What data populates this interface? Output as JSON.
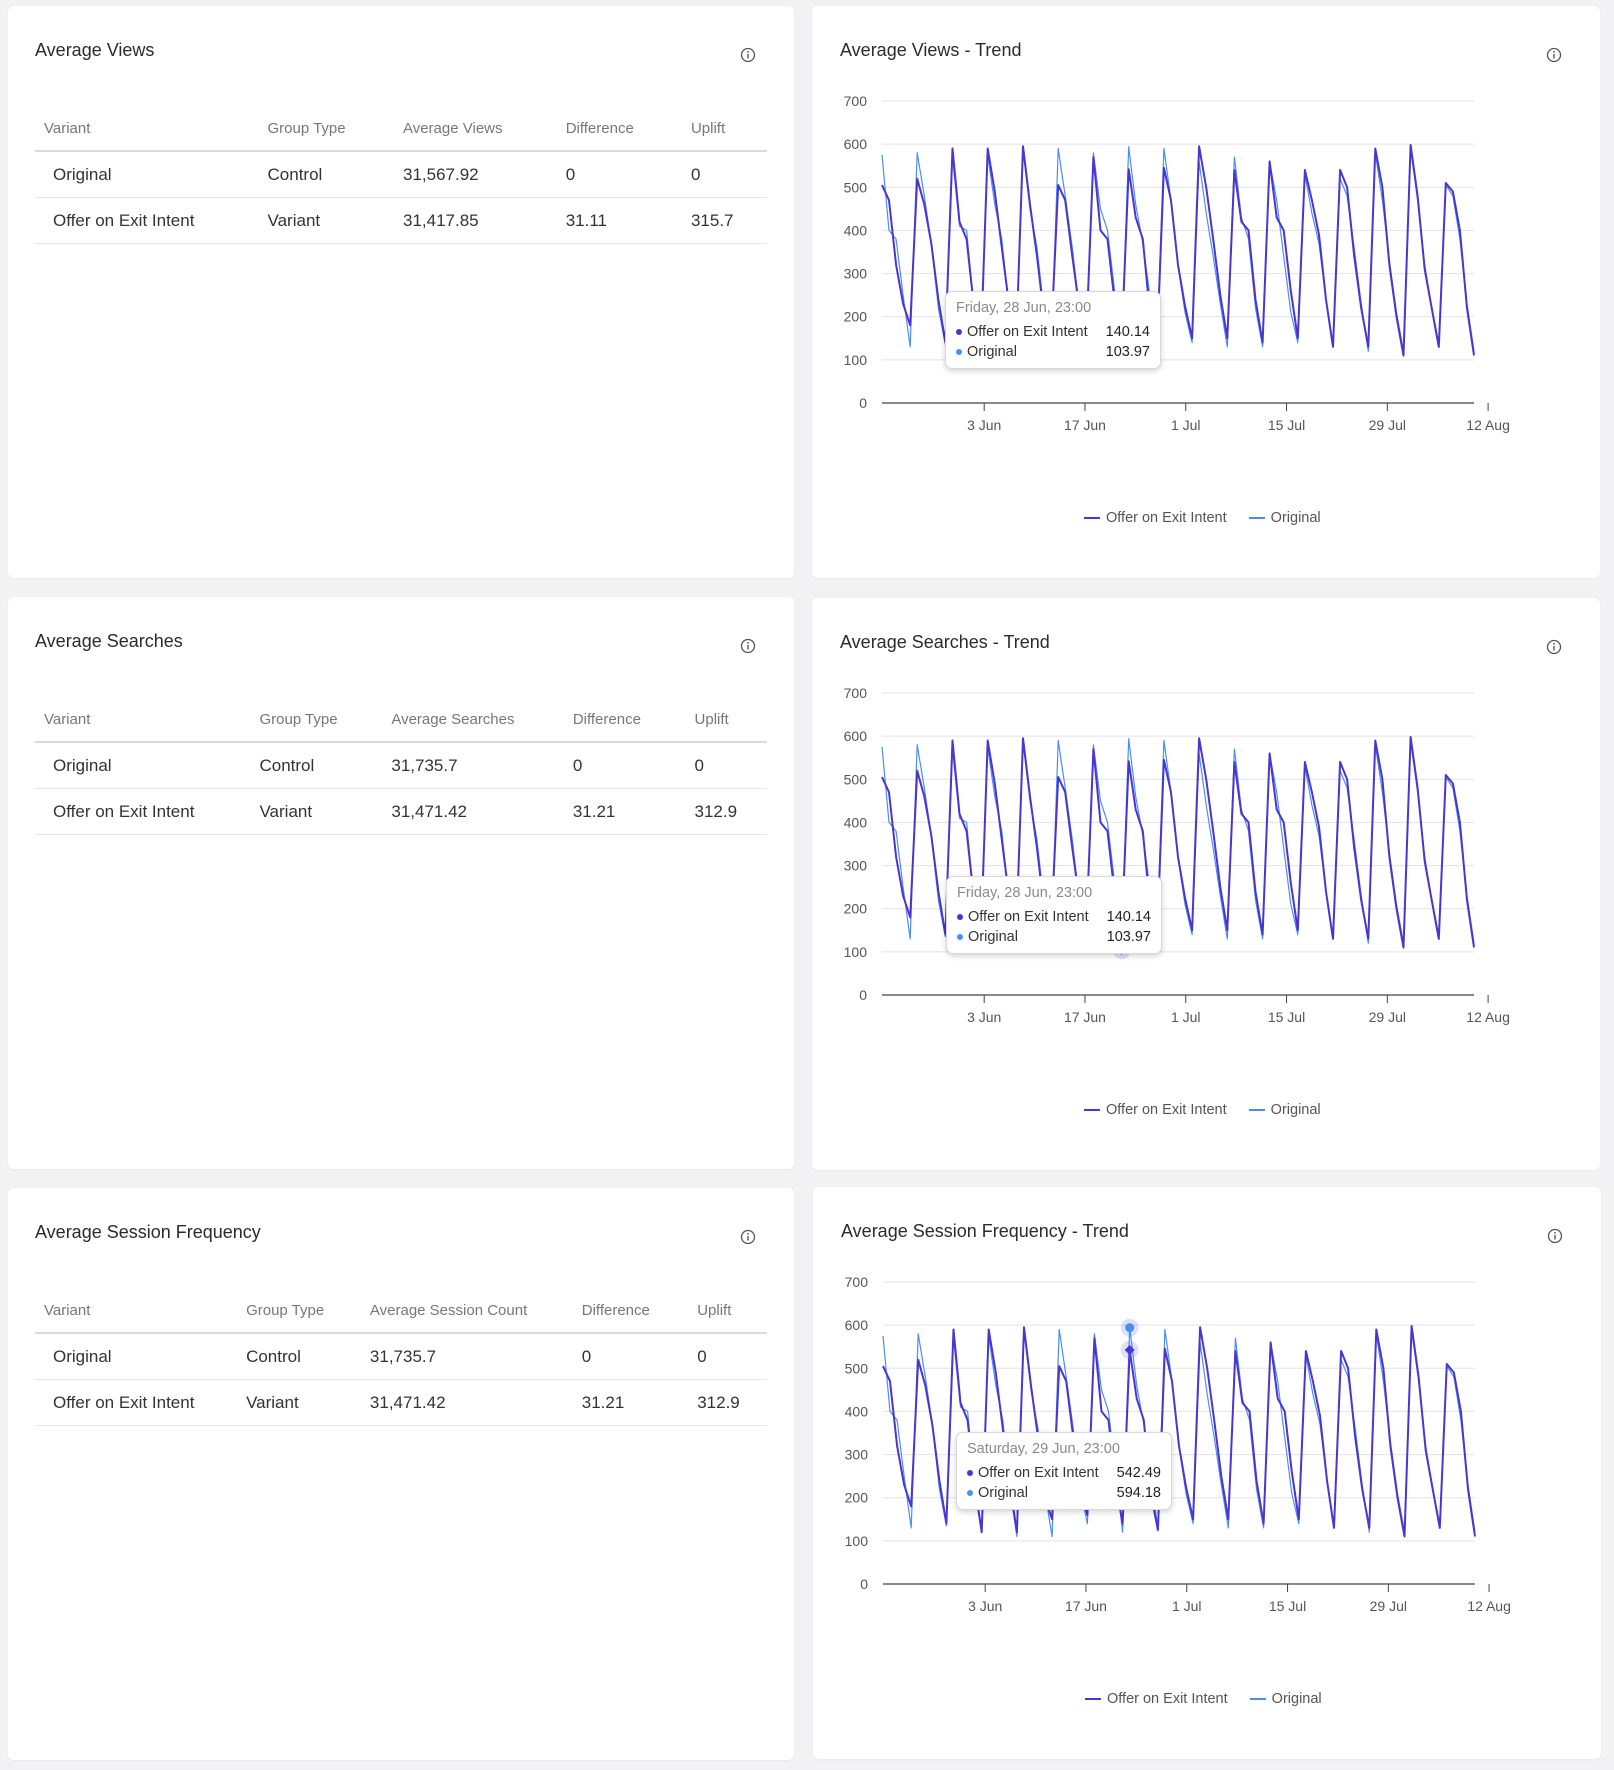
{
  "colors": {
    "variant": "#4b35d1",
    "original": "#4a8ff0"
  },
  "panels": [
    {
      "title": "Average Views",
      "columns": [
        "Variant",
        "Group Type",
        "Average Views",
        "Difference",
        "Uplift"
      ],
      "rows": [
        [
          "Original",
          "Control",
          "31,567.92",
          "0",
          "0"
        ],
        [
          "Offer on Exit Intent",
          "Variant",
          "31,417.85",
          "31.11",
          "315.7"
        ]
      ],
      "trend_title": "Average Views",
      "trend_suffix": "- Trend",
      "tooltip": {
        "title": "Friday, 28 Jun, 23:00",
        "rows": [
          {
            "name": "Offer on Exit Intent",
            "value": "140.14"
          },
          {
            "name": "Original",
            "value": "103.97"
          }
        ]
      }
    },
    {
      "title": "Average Searches",
      "columns": [
        "Variant",
        "Group Type",
        "Average Searches",
        "Difference",
        "Uplift"
      ],
      "rows": [
        [
          "Original",
          "Control",
          "31,735.7",
          "0",
          "0"
        ],
        [
          "Offer on Exit Intent",
          "Variant",
          "31,471.42",
          "31.21",
          "312.9"
        ]
      ],
      "trend_title": "Average Searches",
      "trend_suffix": "- Trend",
      "tooltip": {
        "title": "Friday, 28 Jun, 23:00",
        "rows": [
          {
            "name": "Offer on Exit Intent",
            "value": "140.14"
          },
          {
            "name": "Original",
            "value": "103.97"
          }
        ]
      }
    },
    {
      "title": "Average Session Frequency",
      "columns": [
        "Variant",
        "Group Type",
        "Average Session Count",
        "Difference",
        "Uplift"
      ],
      "rows": [
        [
          "Original",
          "Control",
          "31,735.7",
          "0",
          "0"
        ],
        [
          "Offer on Exit Intent",
          "Variant",
          "31,471.42",
          "31.21",
          "312.9"
        ]
      ],
      "trend_title": "Average Session Frequency",
      "trend_suffix": "- Trend",
      "tooltip": {
        "title": "Saturday, 29 Jun, 23:00",
        "rows": [
          {
            "name": "Offer on Exit Intent",
            "value": "542.49"
          },
          {
            "name": "Original",
            "value": "594.18"
          }
        ]
      }
    }
  ],
  "chart_data": [
    {
      "type": "line",
      "title": "Average Views - Trend",
      "x_ticks": [
        "3 Jun",
        "17 Jun",
        "1 Jul",
        "15 Jul",
        "29 Jul",
        "12 Aug"
      ],
      "y_ticks": [
        "0",
        "100",
        "200",
        "300",
        "400",
        "500",
        "600",
        "700"
      ],
      "ylim": [
        0,
        700
      ],
      "legend": "bottom-center",
      "grid": true,
      "series": [
        {
          "name": "Offer on Exit Intent",
          "values": [
            505,
            470,
            320,
            230,
            180,
            520,
            460,
            370,
            240,
            140,
            590,
            420,
            380,
            230,
            120,
            590,
            490,
            360,
            230,
            120,
            595,
            460,
            340,
            200,
            150,
            505,
            470,
            340,
            220,
            160,
            570,
            400,
            380,
            235,
            140,
            542,
            430,
            380,
            210,
            125,
            545,
            470,
            320,
            225,
            150,
            595,
            500,
            380,
            250,
            150,
            540,
            420,
            400,
            240,
            140,
            560,
            430,
            400,
            260,
            150,
            540,
            470,
            390,
            240,
            130,
            540,
            500,
            340,
            220,
            130,
            590,
            500,
            320,
            200,
            110,
            598,
            480,
            310,
            220,
            130,
            510,
            490,
            400,
            220,
            110
          ]
        },
        {
          "name": "Original",
          "values": [
            575,
            400,
            380,
            250,
            130,
            580,
            480,
            370,
            220,
            135,
            570,
            410,
            400,
            230,
            130,
            575,
            460,
            380,
            220,
            110,
            588,
            450,
            360,
            210,
            110,
            590,
            480,
            360,
            220,
            140,
            580,
            450,
            400,
            260,
            120,
            594,
            460,
            370,
            250,
            130,
            590,
            470,
            320,
            210,
            140,
            560,
            440,
            340,
            230,
            130,
            570,
            430,
            380,
            220,
            130,
            560,
            470,
            340,
            210,
            140,
            530,
            440,
            370,
            240,
            130,
            520,
            480,
            360,
            230,
            120,
            580,
            470,
            330,
            210,
            120,
            590,
            470,
            320,
            220,
            140,
            505,
            480,
            380,
            230,
            120
          ]
        }
      ]
    },
    {
      "type": "line",
      "title": "Average Searches - Trend",
      "x_ticks": [
        "3 Jun",
        "17 Jun",
        "1 Jul",
        "15 Jul",
        "29 Jul",
        "12 Aug"
      ],
      "y_ticks": [
        "0",
        "100",
        "200",
        "300",
        "400",
        "500",
        "600",
        "700"
      ],
      "ylim": [
        0,
        700
      ],
      "legend": "bottom-center",
      "grid": true,
      "series": [
        {
          "name": "Offer on Exit Intent",
          "values": [
            505,
            470,
            320,
            230,
            180,
            520,
            460,
            370,
            240,
            140,
            590,
            420,
            380,
            230,
            120,
            590,
            490,
            360,
            230,
            120,
            595,
            460,
            340,
            200,
            150,
            505,
            470,
            340,
            220,
            160,
            570,
            400,
            380,
            235,
            140,
            542,
            430,
            380,
            210,
            125,
            545,
            470,
            320,
            225,
            150,
            595,
            500,
            380,
            250,
            150,
            540,
            420,
            400,
            240,
            140,
            560,
            430,
            400,
            260,
            150,
            540,
            470,
            390,
            240,
            130,
            540,
            500,
            340,
            220,
            130,
            590,
            500,
            320,
            200,
            110,
            598,
            480,
            310,
            220,
            130,
            510,
            490,
            400,
            220,
            110
          ]
        },
        {
          "name": "Original",
          "values": [
            575,
            400,
            380,
            250,
            130,
            580,
            480,
            370,
            220,
            135,
            570,
            410,
            400,
            230,
            130,
            575,
            460,
            380,
            220,
            110,
            588,
            450,
            360,
            210,
            110,
            590,
            480,
            360,
            220,
            140,
            580,
            450,
            400,
            260,
            120,
            594,
            460,
            370,
            250,
            130,
            590,
            470,
            320,
            210,
            140,
            560,
            440,
            340,
            230,
            130,
            570,
            430,
            380,
            220,
            130,
            560,
            470,
            340,
            210,
            140,
            530,
            440,
            370,
            240,
            130,
            520,
            480,
            360,
            230,
            120,
            580,
            470,
            330,
            210,
            120,
            590,
            470,
            320,
            220,
            140,
            505,
            480,
            380,
            230,
            120
          ]
        }
      ]
    },
    {
      "type": "line",
      "title": "Average Session Frequency - Trend",
      "x_ticks": [
        "3 Jun",
        "17 Jun",
        "1 Jul",
        "15 Jul",
        "29 Jul",
        "12 Aug"
      ],
      "y_ticks": [
        "0",
        "100",
        "200",
        "300",
        "400",
        "500",
        "600",
        "700"
      ],
      "ylim": [
        0,
        700
      ],
      "legend": "bottom-center",
      "grid": true,
      "series": [
        {
          "name": "Offer on Exit Intent",
          "values": [
            505,
            470,
            320,
            230,
            180,
            520,
            460,
            370,
            240,
            140,
            590,
            420,
            380,
            230,
            120,
            590,
            490,
            360,
            230,
            120,
            595,
            460,
            340,
            200,
            150,
            505,
            470,
            340,
            220,
            160,
            570,
            400,
            380,
            235,
            140,
            542,
            430,
            380,
            210,
            125,
            545,
            470,
            320,
            225,
            150,
            595,
            500,
            380,
            250,
            150,
            540,
            420,
            400,
            240,
            140,
            560,
            430,
            400,
            260,
            150,
            540,
            470,
            390,
            240,
            130,
            540,
            500,
            340,
            220,
            130,
            590,
            500,
            320,
            200,
            110,
            598,
            480,
            310,
            220,
            130,
            510,
            490,
            400,
            220,
            110
          ]
        },
        {
          "name": "Original",
          "values": [
            575,
            400,
            380,
            250,
            130,
            580,
            480,
            370,
            220,
            135,
            570,
            410,
            400,
            230,
            130,
            575,
            460,
            380,
            220,
            110,
            588,
            450,
            360,
            210,
            110,
            590,
            480,
            360,
            220,
            140,
            580,
            450,
            400,
            260,
            120,
            594,
            460,
            370,
            250,
            130,
            590,
            470,
            320,
            210,
            140,
            560,
            440,
            340,
            230,
            130,
            570,
            430,
            380,
            220,
            130,
            560,
            470,
            340,
            210,
            140,
            530,
            440,
            370,
            240,
            130,
            520,
            480,
            360,
            230,
            120,
            580,
            470,
            330,
            210,
            120,
            590,
            470,
            320,
            220,
            140,
            505,
            480,
            380,
            230,
            120
          ]
        }
      ]
    }
  ]
}
